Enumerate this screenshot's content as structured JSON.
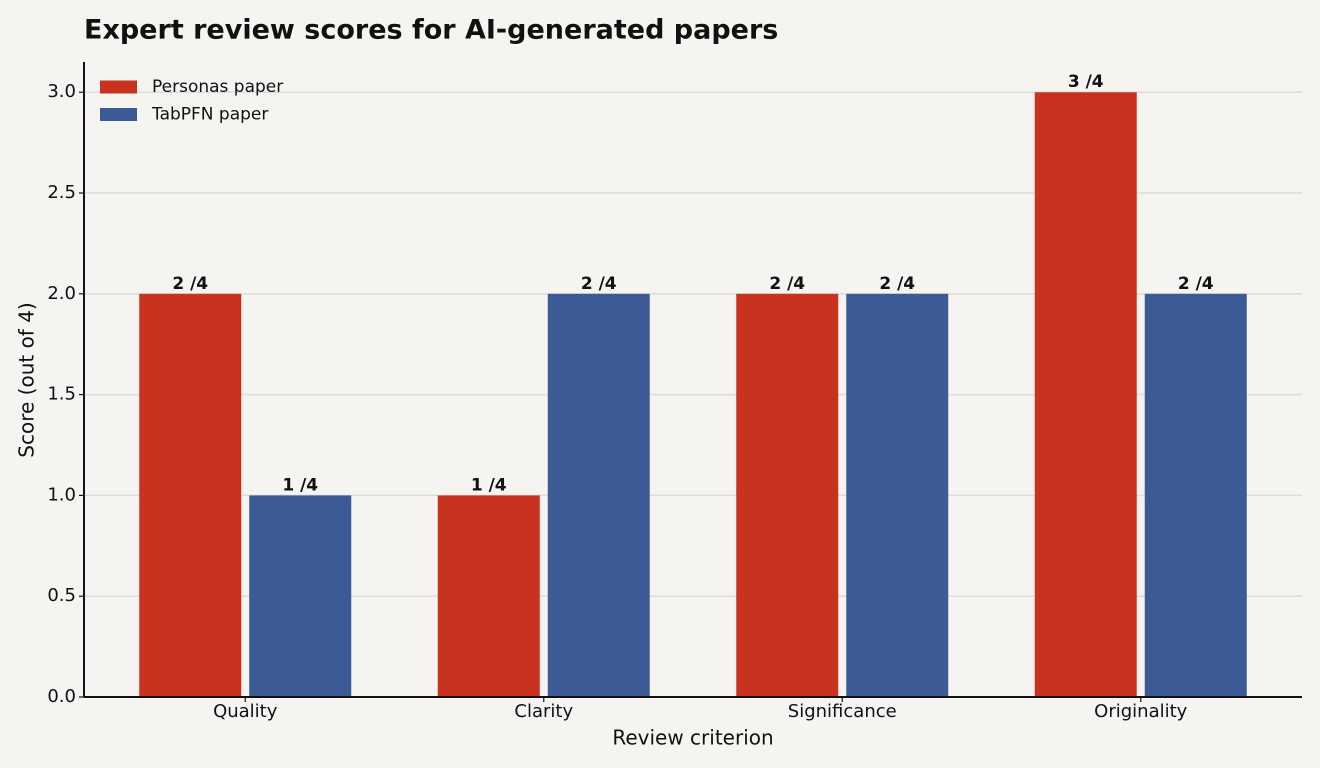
{
  "chart_data": {
    "type": "bar",
    "title": "Expert review scores for AI-generated papers",
    "xlabel": "Review criterion",
    "ylabel": "Score (out of 4)",
    "categories": [
      "Quality",
      "Clarity",
      "Significance",
      "Originality"
    ],
    "series": [
      {
        "name": "Personas paper",
        "color": "#c8321f",
        "values": [
          2,
          1,
          2,
          3
        ],
        "value_labels": [
          "2 /4",
          "1 /4",
          "2 /4",
          "3 /4"
        ]
      },
      {
        "name": "TabPFN paper",
        "color": "#3c5a96",
        "values": [
          1,
          2,
          2,
          2
        ],
        "value_labels": [
          "1 /4",
          "2 /4",
          "2 /4",
          "2 /4"
        ]
      }
    ],
    "ylim": [
      0,
      3.15
    ],
    "yticks": [
      {
        "value": 0,
        "label": "0.0"
      },
      {
        "value": 0.5,
        "label": "0.5"
      },
      {
        "value": 1,
        "label": "1.0"
      },
      {
        "value": 1.5,
        "label": "1.5"
      },
      {
        "value": 2,
        "label": "2.0"
      },
      {
        "value": 2.5,
        "label": "2.5"
      },
      {
        "value": 3,
        "label": "3.0"
      }
    ],
    "grid": true,
    "legend": "upper-left"
  }
}
